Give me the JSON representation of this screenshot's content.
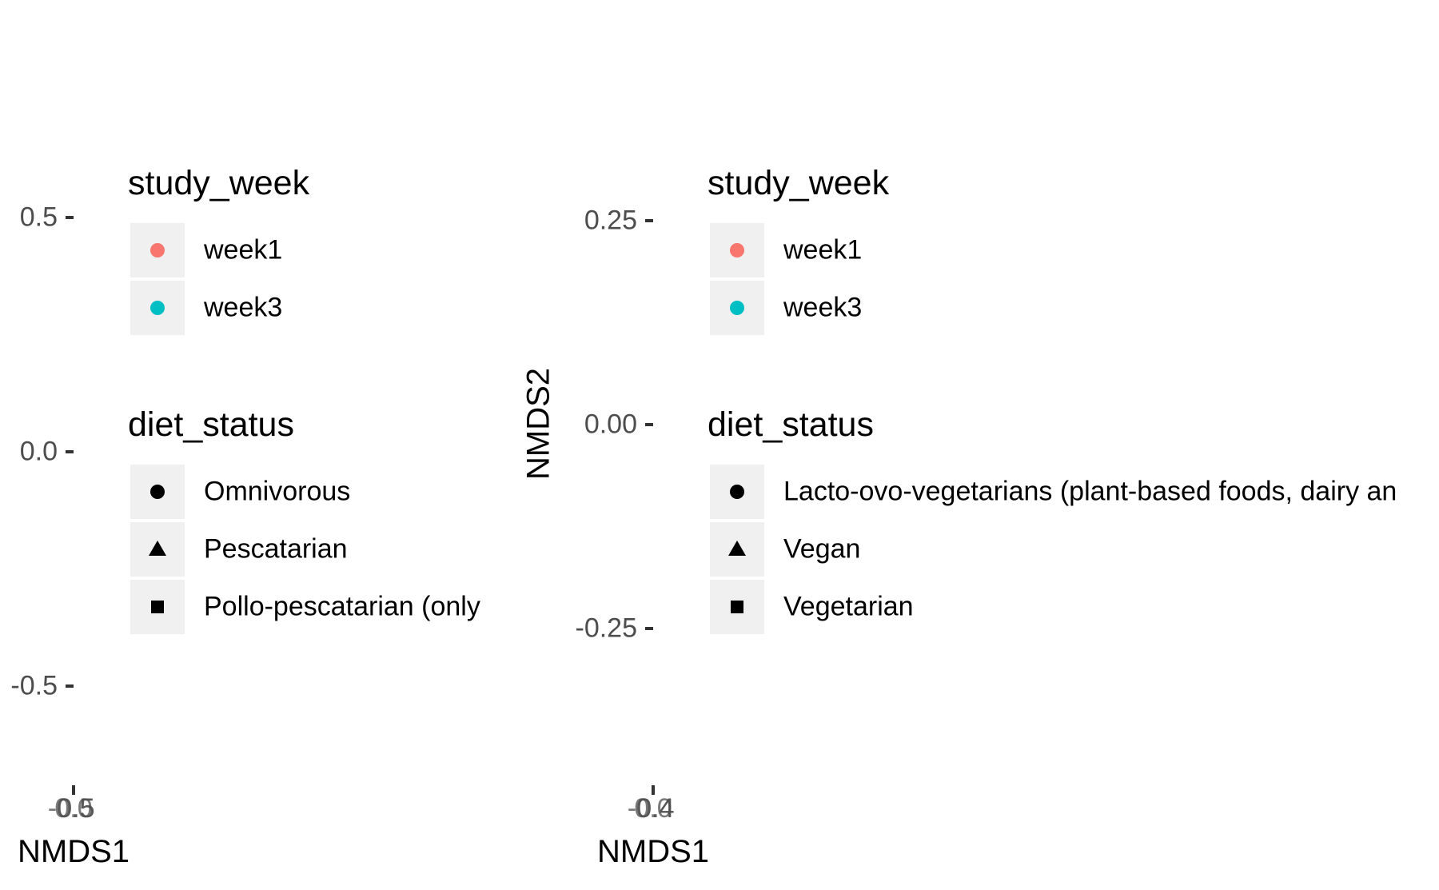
{
  "chart_data": [
    {
      "type": "scatter",
      "title": "",
      "xlabel": "NMDS1",
      "ylabel": "",
      "x_tick_labels": [
        "-0.5",
        "0.0",
        "0.5"
      ],
      "y_tick_labels": [
        "0.5",
        "0.0",
        "-0.5"
      ],
      "y_ticks": [
        0.5,
        0.0,
        -0.5
      ],
      "grid": false,
      "legends": [
        {
          "title": "study_week",
          "entries": [
            {
              "label": "week1",
              "shape": "circle",
              "color": "#F8766D"
            },
            {
              "label": "week3",
              "shape": "circle",
              "color": "#00BFC4"
            }
          ]
        },
        {
          "title": "diet_status",
          "entries": [
            {
              "label": "Omnivorous",
              "shape": "circle",
              "color": "#000000"
            },
            {
              "label": "Pescatarian",
              "shape": "triangle",
              "color": "#000000"
            },
            {
              "label": "Pollo-pescatarian (only",
              "shape": "square",
              "color": "#000000"
            }
          ]
        }
      ],
      "series": []
    },
    {
      "type": "scatter",
      "title": "",
      "xlabel": "NMDS1",
      "ylabel": "NMDS2",
      "x_tick_labels": [
        "-0.4",
        "0.0",
        "0.4"
      ],
      "y_tick_labels": [
        "0.25",
        "0.00",
        "-0.25"
      ],
      "y_ticks": [
        0.25,
        0.0,
        -0.25
      ],
      "grid": false,
      "legends": [
        {
          "title": "study_week",
          "entries": [
            {
              "label": "week1",
              "shape": "circle",
              "color": "#F8766D"
            },
            {
              "label": "week3",
              "shape": "circle",
              "color": "#00BFC4"
            }
          ]
        },
        {
          "title": "diet_status",
          "entries": [
            {
              "label": "Lacto-ovo-vegetarians (plant-based foods, dairy an",
              "shape": "circle",
              "color": "#000000"
            },
            {
              "label": "Vegan",
              "shape": "triangle",
              "color": "#000000"
            },
            {
              "label": "Vegetarian",
              "shape": "square",
              "color": "#000000"
            }
          ]
        }
      ],
      "series": []
    }
  ]
}
